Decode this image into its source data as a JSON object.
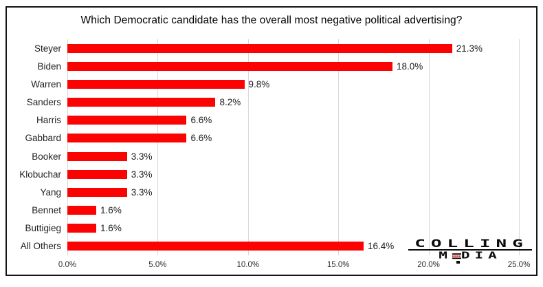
{
  "chart_data": {
    "type": "bar",
    "orientation": "horizontal",
    "title": "Which Democratic candidate has the overall most negative political advertising?",
    "categories": [
      "Steyer",
      "Biden",
      "Warren",
      "Sanders",
      "Harris",
      "Gabbard",
      "Booker",
      "Klobuchar",
      "Yang",
      "Bennet",
      "Buttigieg",
      "All Others"
    ],
    "values": [
      21.3,
      18.0,
      9.8,
      8.2,
      6.6,
      6.6,
      3.3,
      3.3,
      3.3,
      1.6,
      1.6,
      16.4
    ],
    "data_labels": [
      "21.3%",
      "18.0%",
      "9.8%",
      "8.2%",
      "6.6%",
      "6.6%",
      "3.3%",
      "3.3%",
      "3.3%",
      "1.6%",
      "1.6%",
      "16.4%"
    ],
    "x_ticks": [
      "0.0%",
      "5.0%",
      "10.0%",
      "15.0%",
      "20.0%",
      "25.0%"
    ],
    "xlim": [
      0,
      25
    ],
    "xlabel": "",
    "ylabel": "",
    "grid": true,
    "legend": false,
    "bar_color": "#fb0303",
    "gridline_color": "#d8d8d8"
  },
  "logo": {
    "line1": "COLLING",
    "line2_letters": [
      "M",
      "E",
      "D",
      "I",
      "A"
    ],
    "accent_color": "#ff0000"
  }
}
